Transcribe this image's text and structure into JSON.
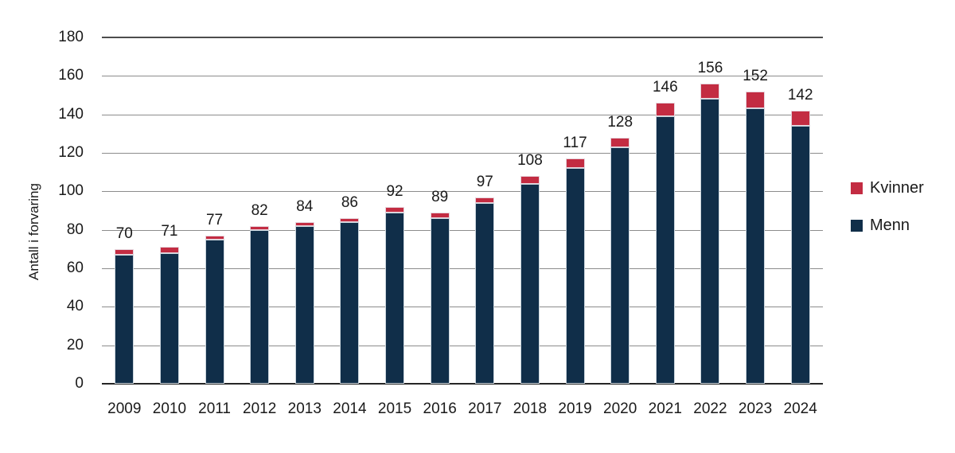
{
  "chart_data": {
    "type": "bar",
    "stacked": true,
    "title": "",
    "xlabel": "",
    "ylabel": "Antall i forvaring",
    "ylim": [
      0,
      180
    ],
    "ytick_step": 20,
    "yticks": [
      0,
      20,
      40,
      60,
      80,
      100,
      120,
      140,
      160,
      180
    ],
    "grid": "horizontal",
    "legend_position": "right",
    "categories": [
      "2009",
      "2010",
      "2011",
      "2012",
      "2013",
      "2014",
      "2015",
      "2016",
      "2017",
      "2018",
      "2019",
      "2020",
      "2021",
      "2022",
      "2023",
      "2024"
    ],
    "series": [
      {
        "name": "Kvinner",
        "color": "#c32c42",
        "values": [
          3,
          3,
          2,
          2,
          2,
          2,
          3,
          3,
          3,
          4,
          5,
          5,
          7,
          8,
          9,
          8
        ]
      },
      {
        "name": "Menn",
        "color": "#102e49",
        "values": [
          67,
          68,
          75,
          80,
          82,
          84,
          89,
          86,
          94,
          104,
          112,
          123,
          139,
          148,
          143,
          134
        ]
      }
    ],
    "totals": [
      70,
      71,
      77,
      82,
      84,
      86,
      92,
      89,
      97,
      108,
      117,
      128,
      146,
      156,
      152,
      142
    ],
    "colors": {
      "gridline": "#8c8c8c",
      "top_gridline": "#4d4d4d",
      "baseline": "#262626",
      "text": "#1a1a1a"
    }
  }
}
